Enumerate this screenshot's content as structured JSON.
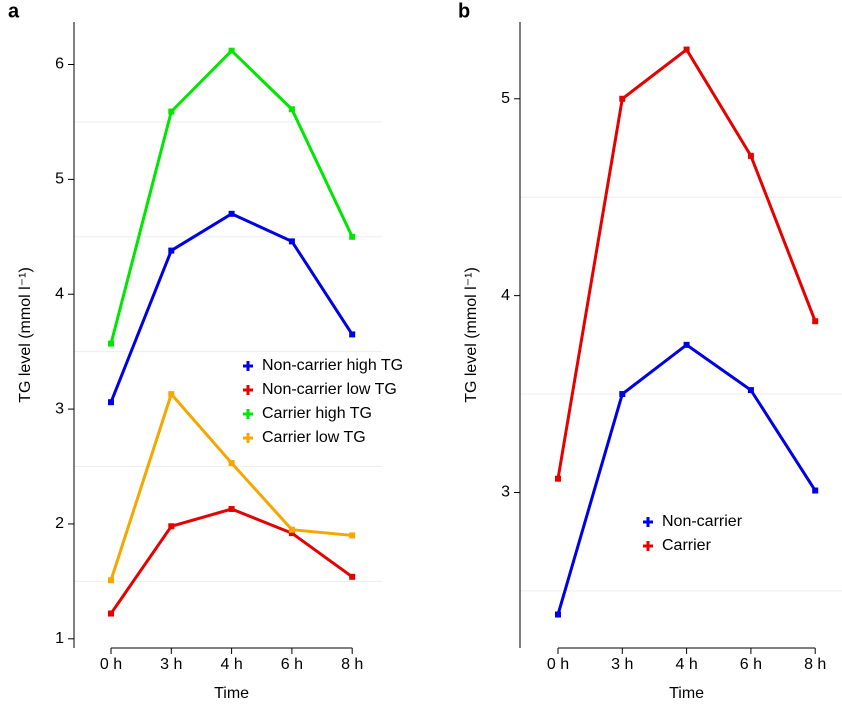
{
  "chart_data": [
    {
      "type": "line",
      "panel_label": "a",
      "x_label": "Time",
      "y_label": "TG level (mmol l⁻¹)",
      "categories": [
        "0 h",
        "3 h",
        "4 h",
        "6 h",
        "8 h"
      ],
      "ylim": [
        0.92,
        6.37
      ],
      "yticks": [
        1,
        2,
        3,
        4,
        5,
        6
      ],
      "grid_lines": [
        1.5,
        2.5,
        3.5,
        4.5,
        5.5
      ],
      "legend": "center-right",
      "series": [
        {
          "name": "Non-carrier high TG",
          "color": "#0000e6",
          "values": [
            3.06,
            4.38,
            4.7,
            4.46,
            3.65
          ]
        },
        {
          "name": "Non-carrier low TG",
          "color": "#e60000",
          "values": [
            1.22,
            1.98,
            2.13,
            1.92,
            1.54
          ]
        },
        {
          "name": "Carrier high TG",
          "color": "#00e600",
          "values": [
            3.57,
            5.59,
            6.12,
            5.61,
            4.5
          ]
        },
        {
          "name": "Carrier low TG",
          "color": "#f5a700",
          "values": [
            1.51,
            3.13,
            2.53,
            1.95,
            1.9
          ]
        }
      ]
    },
    {
      "type": "line",
      "panel_label": "b",
      "x_label": "Time",
      "y_label": "TG level (mmol l⁻¹)",
      "categories": [
        "0 h",
        "3 h",
        "4 h",
        "6 h",
        "8 h"
      ],
      "ylim": [
        2.21,
        5.39
      ],
      "yticks": [
        3,
        4,
        5
      ],
      "grid_lines": [
        2.5,
        3.5,
        4.5
      ],
      "legend": "bottom-center",
      "series": [
        {
          "name": "Non-carrier",
          "color": "#0000e6",
          "values": [
            2.38,
            3.5,
            3.75,
            3.52,
            3.01
          ]
        },
        {
          "name": "Carrier",
          "color": "#e60000",
          "values": [
            3.07,
            5.0,
            5.25,
            4.71,
            3.87
          ]
        }
      ]
    }
  ]
}
